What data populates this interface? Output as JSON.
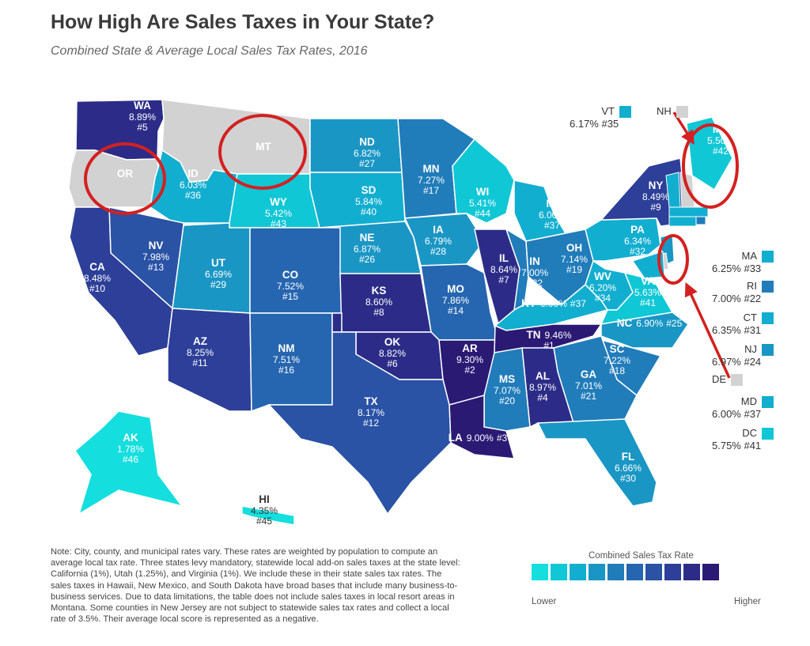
{
  "title": "How High Are Sales Taxes in Your State?",
  "subtitle": "Combined State & Average Local Sales Tax Rates, 2016",
  "colors": {
    "no_tax": "#d2d2d2",
    "scale": [
      "#15dede",
      "#10c7d6",
      "#12aed0",
      "#1a96c4",
      "#217cba",
      "#2666b0",
      "#2a52a5",
      "#2d3f98",
      "#2c2c88",
      "#2a1a74"
    ],
    "highlight": "#d42020"
  },
  "states": [
    {
      "abbr": "WA",
      "rate": "8.89%",
      "rank": "#5",
      "tier": 8
    },
    {
      "abbr": "OR",
      "rate": "",
      "rank": "",
      "tier": -1
    },
    {
      "abbr": "MT",
      "rate": "",
      "rank": "",
      "tier": -1
    },
    {
      "abbr": "ID",
      "rate": "6.03%",
      "rank": "#36",
      "tier": 2
    },
    {
      "abbr": "WY",
      "rate": "5.42%",
      "rank": "#43",
      "tier": 1
    },
    {
      "abbr": "ND",
      "rate": "6.82%",
      "rank": "#27",
      "tier": 3
    },
    {
      "abbr": "SD",
      "rate": "5.84%",
      "rank": "#40",
      "tier": 2
    },
    {
      "abbr": "NE",
      "rate": "6.87%",
      "rank": "#26",
      "tier": 3
    },
    {
      "abbr": "MN",
      "rate": "7.27%",
      "rank": "#17",
      "tier": 4
    },
    {
      "abbr": "IA",
      "rate": "6.79%",
      "rank": "#28",
      "tier": 3
    },
    {
      "abbr": "WI",
      "rate": "5.41%",
      "rank": "#44",
      "tier": 1
    },
    {
      "abbr": "MI",
      "rate": "6.00%",
      "rank": "#37",
      "tier": 2
    },
    {
      "abbr": "NV",
      "rate": "7.98%",
      "rank": "#13",
      "tier": 6
    },
    {
      "abbr": "CA",
      "rate": "8.48%",
      "rank": "#10",
      "tier": 7
    },
    {
      "abbr": "UT",
      "rate": "6.69%",
      "rank": "#29",
      "tier": 3
    },
    {
      "abbr": "CO",
      "rate": "7.52%",
      "rank": "#15",
      "tier": 5
    },
    {
      "abbr": "KS",
      "rate": "8.60%",
      "rank": "#8",
      "tier": 8
    },
    {
      "abbr": "MO",
      "rate": "7.86%",
      "rank": "#14",
      "tier": 5
    },
    {
      "abbr": "IL",
      "rate": "8.64%",
      "rank": "#7",
      "tier": 8
    },
    {
      "abbr": "IN",
      "rate": "7.00%",
      "rank": "#22",
      "tier": 4
    },
    {
      "abbr": "OH",
      "rate": "7.14%",
      "rank": "#19",
      "tier": 4
    },
    {
      "abbr": "KY",
      "rate": "6.00%",
      "rank": "#37",
      "tier": 2
    },
    {
      "abbr": "WV",
      "rate": "6.20%",
      "rank": "#34",
      "tier": 2
    },
    {
      "abbr": "VA",
      "rate": "5.63%",
      "rank": "#41",
      "tier": 1
    },
    {
      "abbr": "PA",
      "rate": "6.34%",
      "rank": "#32",
      "tier": 2
    },
    {
      "abbr": "NY",
      "rate": "8.49%",
      "rank": "#9",
      "tier": 7
    },
    {
      "abbr": "ME",
      "rate": "5.50%",
      "rank": "#42",
      "tier": 1
    },
    {
      "abbr": "AZ",
      "rate": "8.25%",
      "rank": "#11",
      "tier": 7
    },
    {
      "abbr": "NM",
      "rate": "7.51%",
      "rank": "#16",
      "tier": 5
    },
    {
      "abbr": "OK",
      "rate": "8.82%",
      "rank": "#6",
      "tier": 8
    },
    {
      "abbr": "AR",
      "rate": "9.30%",
      "rank": "#2",
      "tier": 9
    },
    {
      "abbr": "TN",
      "rate": "9.46%",
      "rank": "#1",
      "tier": 9
    },
    {
      "abbr": "NC",
      "rate": "6.90%",
      "rank": "#25",
      "tier": 3
    },
    {
      "abbr": "SC",
      "rate": "7.22%",
      "rank": "#18",
      "tier": 4
    },
    {
      "abbr": "GA",
      "rate": "7.01%",
      "rank": "#21",
      "tier": 4
    },
    {
      "abbr": "AL",
      "rate": "8.97%",
      "rank": "#4",
      "tier": 8
    },
    {
      "abbr": "MS",
      "rate": "7.07%",
      "rank": "#20",
      "tier": 4
    },
    {
      "abbr": "LA",
      "rate": "9.00%",
      "rank": "#3",
      "tier": 9
    },
    {
      "abbr": "TX",
      "rate": "8.17%",
      "rank": "#12",
      "tier": 6
    },
    {
      "abbr": "FL",
      "rate": "6.66%",
      "rank": "#30",
      "tier": 3
    },
    {
      "abbr": "AK",
      "rate": "1.78%",
      "rank": "#46",
      "tier": 0
    },
    {
      "abbr": "HI",
      "rate": "4.35%",
      "rank": "#45",
      "tier": 0
    }
  ],
  "side_states": [
    {
      "abbr": "VT",
      "text": "6.17% #35",
      "tier": 2
    },
    {
      "abbr": "NH",
      "text": "",
      "tier": -1
    },
    {
      "abbr": "MA",
      "text": "6.25% #33",
      "tier": 2
    },
    {
      "abbr": "RI",
      "text": "7.00% #22",
      "tier": 4
    },
    {
      "abbr": "CT",
      "text": "6.35% #31",
      "tier": 2
    },
    {
      "abbr": "NJ",
      "text": "6.97% #24",
      "tier": 3
    },
    {
      "abbr": "DE",
      "text": "",
      "tier": -1
    },
    {
      "abbr": "MD",
      "text": "6.00% #37",
      "tier": 2
    },
    {
      "abbr": "DC",
      "text": "5.75% #41",
      "tier": 1
    }
  ],
  "note": "Note: City, county, and municipal rates vary. These rates are weighted by population to compute an average local tax rate. Three states levy mandatory, statewide local add-on sales taxes at the state level: California (1%), Utah (1.25%), and Virginia (1%). We include these in their state sales tax rates. The sales taxes in Hawaii, New Mexico, and South Dakota have broad bases that include many business-to-business services. Due to data limitations, the table does not include sales taxes in local resort areas in Montana. Some counties in New Jersey are not subject to statewide sales tax rates and collect a local rate of 3.5%. Their average local score is represented as a negative.",
  "legend": {
    "title": "Combined Sales Tax Rate",
    "low": "Lower",
    "high": "Higher"
  }
}
